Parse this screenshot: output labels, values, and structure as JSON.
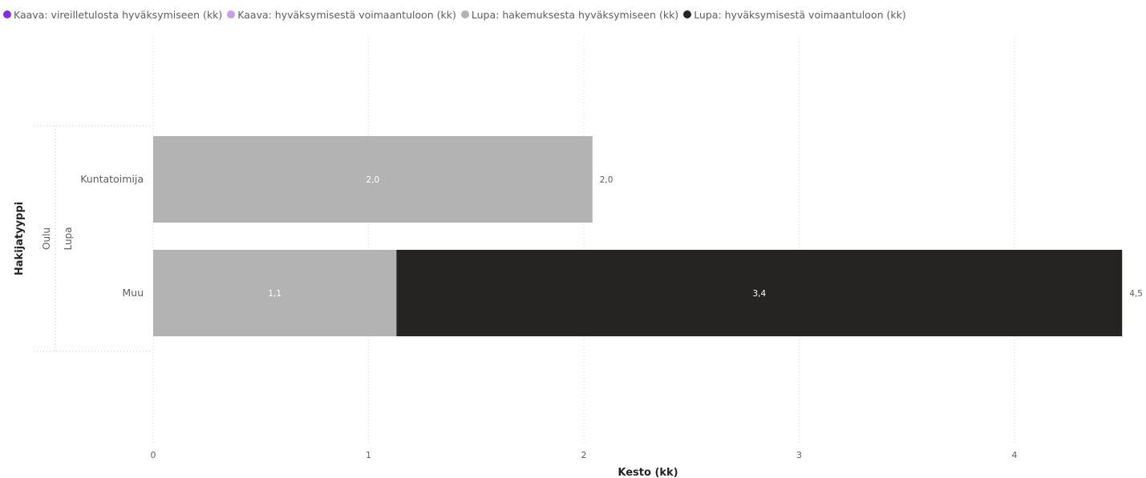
{
  "chart_data": {
    "type": "bar",
    "orientation": "horizontal",
    "stacked": true,
    "title": "",
    "xlabel": "Kesto (kk)",
    "ylabel": "Hakijatyyppi",
    "xlim": [
      0,
      4.5
    ],
    "x_ticks": [
      "0",
      "1",
      "2",
      "3",
      "4"
    ],
    "x_tick_values": [
      0,
      1,
      2,
      3,
      4
    ],
    "grid": true,
    "legend_position": "top-left",
    "hierarchy_labels": [
      "Oulu",
      "Lupa"
    ],
    "categories": [
      "Kuntatoimija",
      "Muu"
    ],
    "series": [
      {
        "name": "Kaava: vireilletulosta hyväksymiseen (kk)",
        "color": "#8a2be2",
        "values": [
          0,
          0
        ],
        "labels": [
          "",
          ""
        ]
      },
      {
        "name": "Kaava: hyväksymisestä voimaantuloon (kk)",
        "color": "#c99aef",
        "values": [
          0,
          0
        ],
        "labels": [
          "",
          ""
        ]
      },
      {
        "name": "Lupa: hakemuksesta hyväksymiseen (kk)",
        "color": "#b3b3b3",
        "values": [
          2.04,
          1.13
        ],
        "labels": [
          "2,0",
          "1,1"
        ]
      },
      {
        "name": "Lupa: hyväksymisestä voimaantuloon (kk)",
        "color": "#252423",
        "values": [
          0,
          3.37
        ],
        "labels": [
          "",
          "3,4"
        ]
      }
    ],
    "totals": [
      "2,0",
      "4,5"
    ]
  }
}
